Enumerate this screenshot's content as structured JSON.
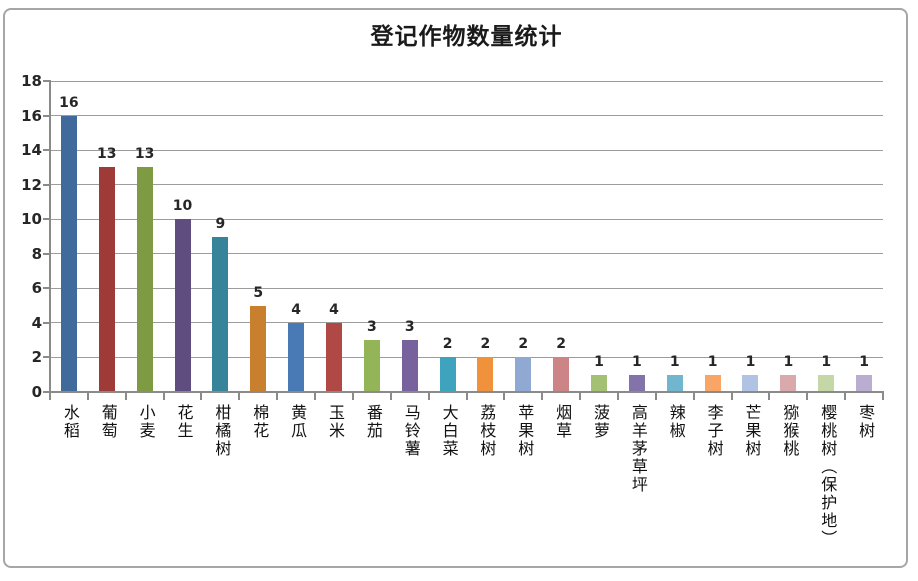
{
  "chart_data": {
    "type": "bar",
    "title": "登记作物数量统计",
    "categories": [
      "水稻",
      "葡萄",
      "小麦",
      "花生",
      "柑橘树",
      "棉花",
      "黄瓜",
      "玉米",
      "番茄",
      "马铃薯",
      "大白菜",
      "荔枝树",
      "苹果树",
      "烟草",
      "菠萝",
      "高羊茅草坪",
      "辣椒",
      "李子树",
      "芒果树",
      "猕猴桃",
      "樱桃树（保护地）",
      "枣树"
    ],
    "values": [
      16,
      13,
      13,
      10,
      9,
      5,
      4,
      4,
      3,
      3,
      2,
      2,
      2,
      2,
      1,
      1,
      1,
      1,
      1,
      1,
      1,
      1
    ],
    "bar_colors": [
      "#40699C",
      "#9E3B38",
      "#7E9A42",
      "#5F4D80",
      "#37839A",
      "#C8802F",
      "#4A7AB5",
      "#B04846",
      "#93B457",
      "#77629E",
      "#3FA3BE",
      "#F0913C",
      "#8FA9D2",
      "#CD8487",
      "#A4C173",
      "#8472AA",
      "#72B5CF",
      "#F8A566",
      "#B0C3E3",
      "#D9A9AB",
      "#C5D7A6",
      "#BBADD2"
    ],
    "value_labels_shown": true,
    "xlabel": "",
    "ylabel": "",
    "ylim": [
      0,
      18
    ],
    "yticks": [
      0,
      2,
      4,
      6,
      8,
      10,
      12,
      14,
      16,
      18
    ],
    "grid": "horizontal",
    "legend": "none",
    "colors": {
      "gridline": "#9c9c9c",
      "axis": "#8a8a8a",
      "text": "#262626",
      "frame_border": "#a6a6a6",
      "background": "#ffffff"
    }
  }
}
